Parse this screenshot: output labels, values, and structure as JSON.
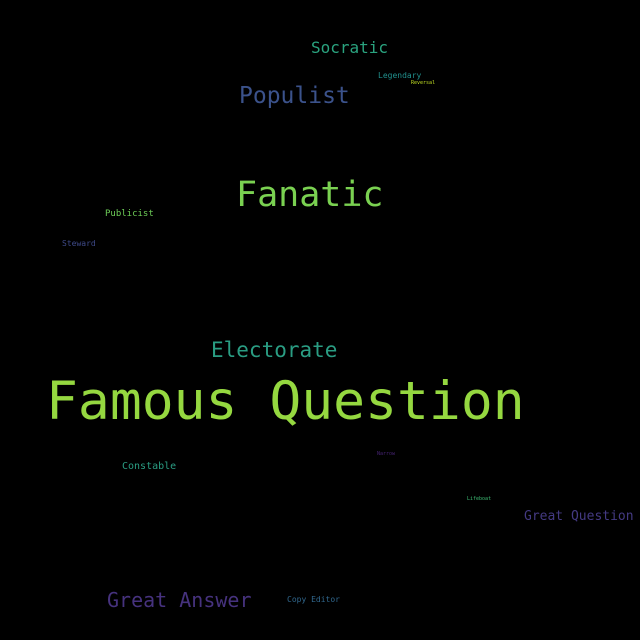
{
  "words": [
    {
      "text": "Socratic",
      "color": "#2aa37f"
    },
    {
      "text": "Legendary",
      "color": "#21908d"
    },
    {
      "text": "Reversal",
      "color": "#c2df23"
    },
    {
      "text": "Populist",
      "color": "#3b528b"
    },
    {
      "text": "Fanatic",
      "color": "#7ad151"
    },
    {
      "text": "Publicist",
      "color": "#6ece58"
    },
    {
      "text": "Steward",
      "color": "#3e4a89"
    },
    {
      "text": "Electorate",
      "color": "#2a9d83"
    },
    {
      "text": "Famous Question",
      "color": "#95d840"
    },
    {
      "text": "Narrow",
      "color": "#482475"
    },
    {
      "text": "Constable",
      "color": "#2a9d83"
    },
    {
      "text": "Lifeboat",
      "color": "#3dbc74"
    },
    {
      "text": "Great Question",
      "color": "#443a83"
    },
    {
      "text": "Great Answer",
      "color": "#46327e"
    },
    {
      "text": "Copy Editor",
      "color": "#31688e"
    }
  ],
  "background": "#000000"
}
